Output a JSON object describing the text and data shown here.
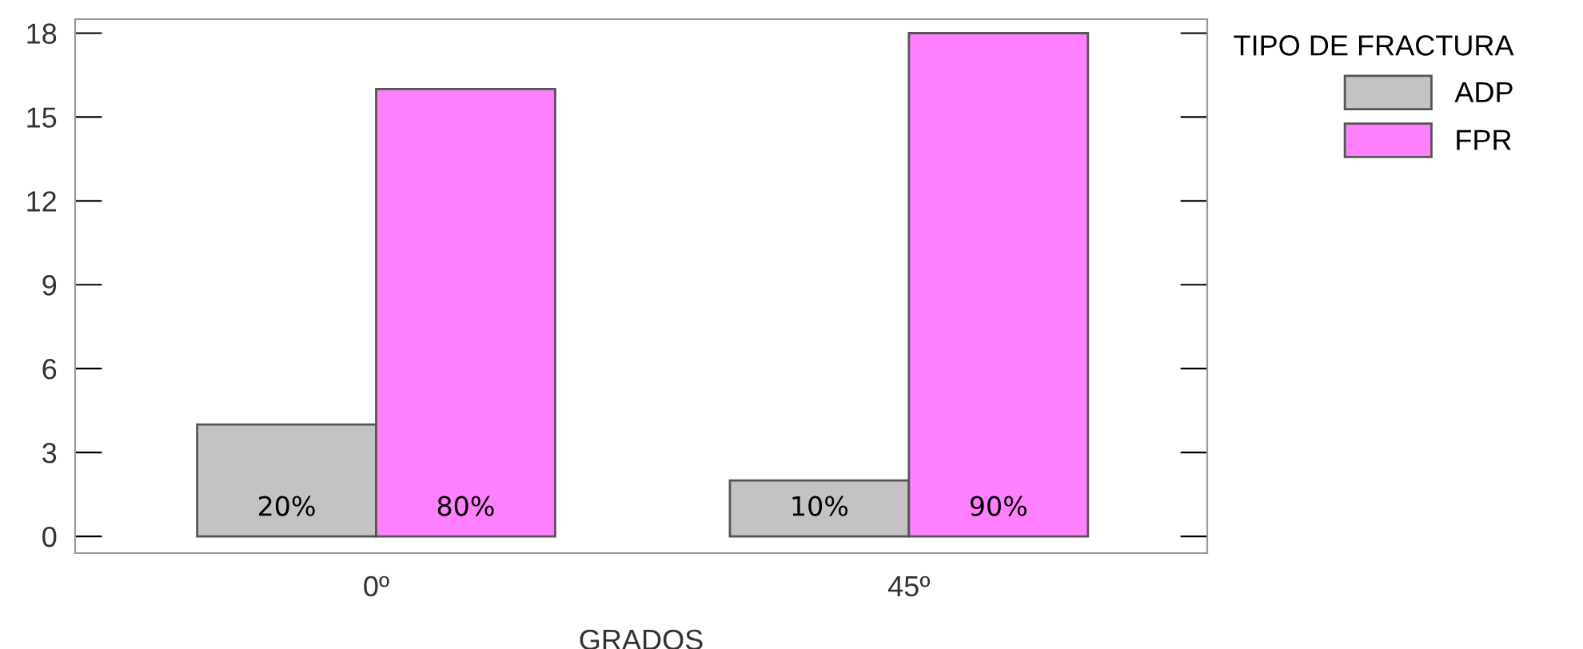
{
  "chart_data": {
    "type": "bar",
    "xlabel": "GRADOS",
    "legend_title": "TIPO DE FRACTURA",
    "categories": [
      "0º",
      "45º"
    ],
    "series": [
      {
        "name": "ADP",
        "color": "#c4c2c4",
        "values": [
          4,
          2
        ]
      },
      {
        "name": "FPR",
        "color": "#ff80ff",
        "values": [
          16,
          18
        ]
      }
    ],
    "annotations": [
      "20%",
      "10%",
      "80%",
      "90%"
    ],
    "ylim": [
      -0.6,
      18.5
    ],
    "yticks": [
      0,
      3,
      6,
      9,
      12,
      15,
      18
    ],
    "grid": false,
    "legend": "top right"
  }
}
